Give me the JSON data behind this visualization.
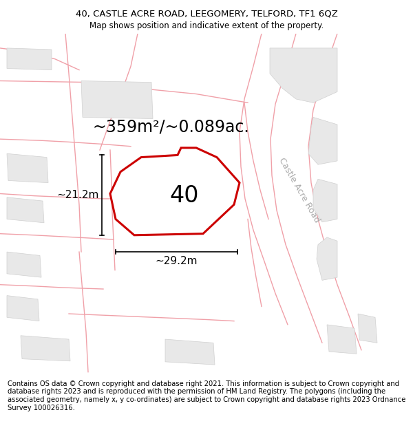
{
  "title_line1": "40, CASTLE ACRE ROAD, LEEGOMERY, TELFORD, TF1 6QZ",
  "title_line2": "Map shows position and indicative extent of the property.",
  "area_label": "~359m²/~0.089ac.",
  "number_label": "40",
  "width_label": "~29.2m",
  "height_label": "~21.2m",
  "road_label": "Castle Acre Road",
  "footer_text": "Contains OS data © Crown copyright and database right 2021. This information is subject to Crown copyright and database rights 2023 and is reproduced with the permission of HM Land Registry. The polygons (including the associated geometry, namely x, y co-ordinates) are subject to Crown copyright and database rights 2023 Ordnance Survey 100026316.",
  "bg_color": "#ffffff",
  "map_bg": "#ffffff",
  "plot_fill": "#ffffff",
  "plot_edge": "#cc0000",
  "road_line_color": "#f0a0a8",
  "building_color": "#e8e8e8",
  "building_edge": "#d0d0d0",
  "title_fontsize": 9.5,
  "subtitle_fontsize": 8.5,
  "area_fontsize": 17,
  "number_fontsize": 24,
  "dim_fontsize": 11,
  "road_label_fontsize": 9,
  "footer_fontsize": 7.2
}
